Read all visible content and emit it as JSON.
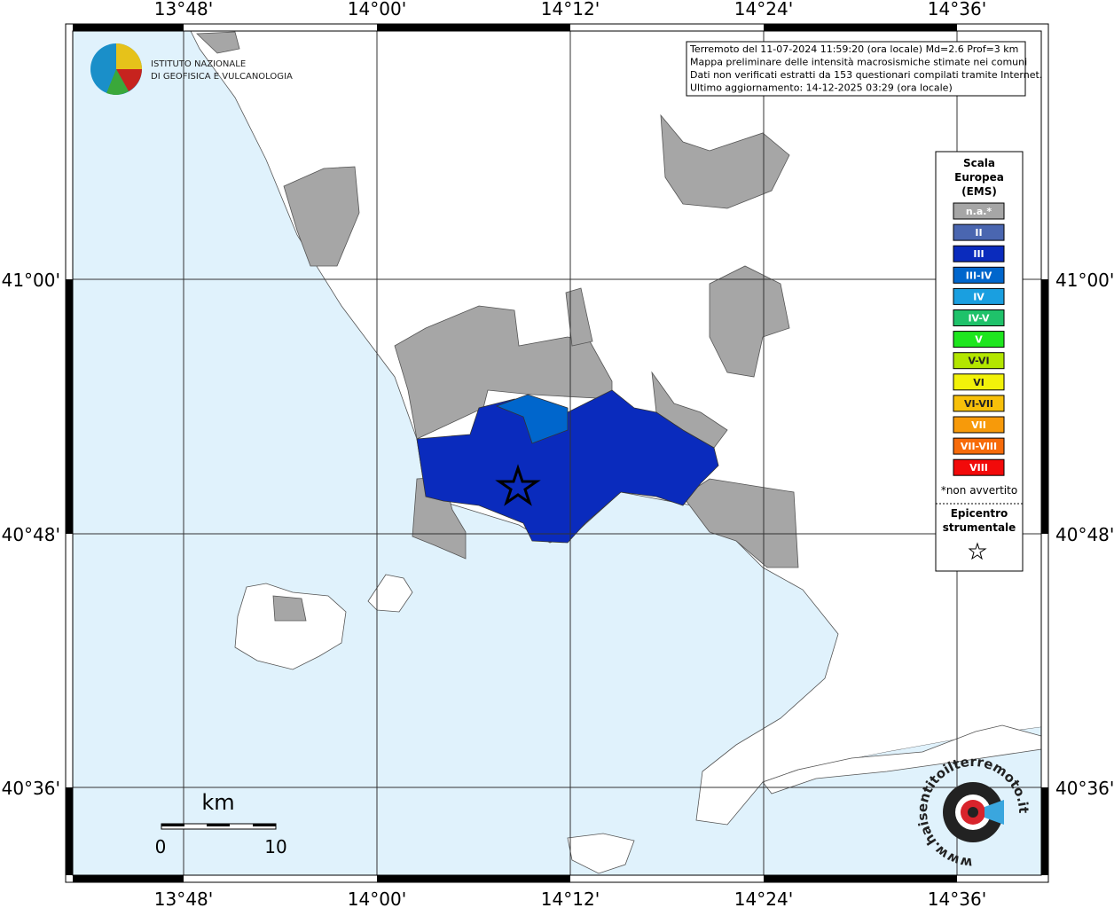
{
  "map": {
    "lon_labels": [
      "13°48'",
      "14°00'",
      "14°12'",
      "14°24'",
      "14°36'"
    ],
    "lat_labels": [
      "41°00'",
      "40°48'",
      "40°36'"
    ],
    "info": [
      "Terremoto del 11-07-2024 11:59:20 (ora locale) Md=2.6 Prof=3 km",
      "Mappa preliminare delle intensità macrosismiche stimate nei comuni",
      "Dati non verificati estratti da 153 questionari compilati tramite Internet.",
      "Ultimo aggiornamento: 14-12-2025 03:29 (ora locale)"
    ],
    "logo": [
      "ISTITUTO NAZIONALE",
      "DI GEOFISICA E VULCANOLOGIA"
    ],
    "legend": {
      "title": [
        "Scala",
        "Europea",
        "(EMS)"
      ],
      "classes": [
        {
          "label": "n.a.*",
          "color": "#a6a6a6"
        },
        {
          "label": "II",
          "color": "#4a66b0"
        },
        {
          "label": "III",
          "color": "#0a2bbd"
        },
        {
          "label": "III-IV",
          "color": "#0066cc"
        },
        {
          "label": "IV",
          "color": "#1a9fe0"
        },
        {
          "label": "IV-V",
          "color": "#1fc26a"
        },
        {
          "label": "V",
          "color": "#1ee61e"
        },
        {
          "label": "V-VI",
          "color": "#b3e600"
        },
        {
          "label": "VI",
          "color": "#f2f20a"
        },
        {
          "label": "VI-VII",
          "color": "#f7c00a"
        },
        {
          "label": "VII",
          "color": "#f79a0a"
        },
        {
          "label": "VII-VIII",
          "color": "#f76b0a"
        },
        {
          "label": "VIII",
          "color": "#f20a0a"
        }
      ],
      "note": "*non avvertito",
      "epicenter": [
        "Epicentro",
        "strumentale"
      ]
    },
    "scale": {
      "unit": "km",
      "ticks": [
        "0",
        "10"
      ]
    },
    "watermark": "www.haisentitoilterremoto.it"
  }
}
